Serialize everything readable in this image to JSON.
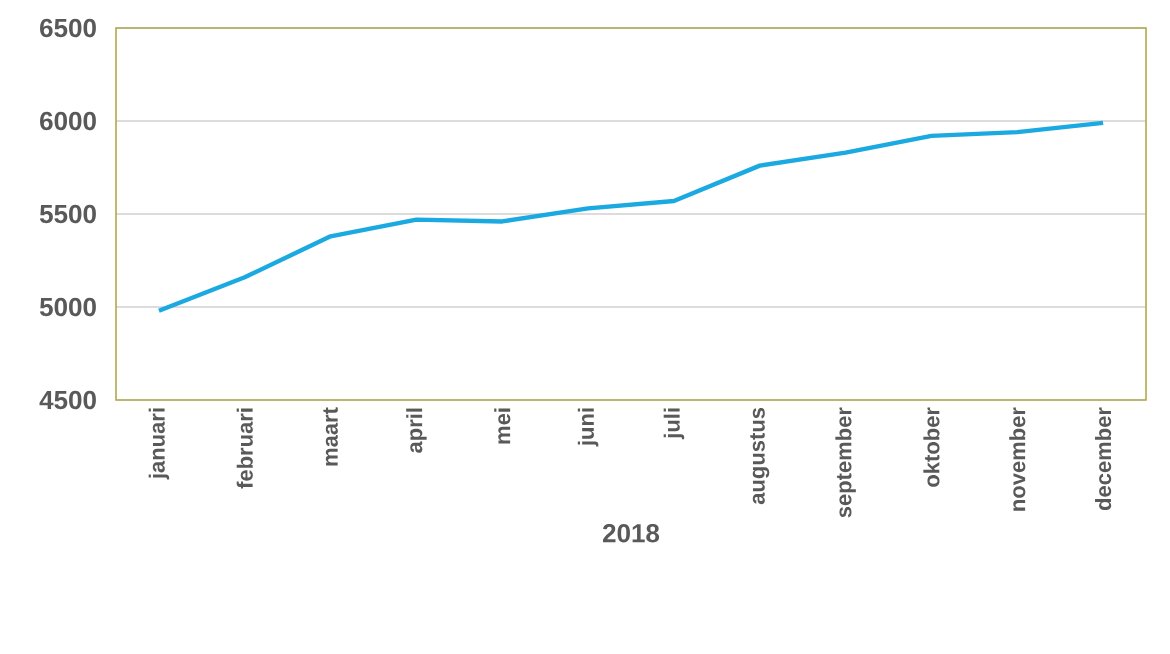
{
  "chart_data": {
    "type": "line",
    "xlabel": "2018",
    "categories": [
      "januari",
      "februari",
      "maart",
      "april",
      "mei",
      "juni",
      "juli",
      "augustus",
      "september",
      "oktober",
      "november",
      "december"
    ],
    "series": [
      {
        "color": "#1ba9e1",
        "values": [
          4980,
          5160,
          5380,
          5470,
          5460,
          5530,
          5570,
          5760,
          5830,
          5920,
          5940,
          5990
        ]
      }
    ],
    "ylim": [
      4500,
      6500
    ],
    "yticks": [
      4500,
      5000,
      5500,
      6000,
      6500
    ],
    "grid": "y",
    "marker": "none",
    "line_style": "solid"
  }
}
